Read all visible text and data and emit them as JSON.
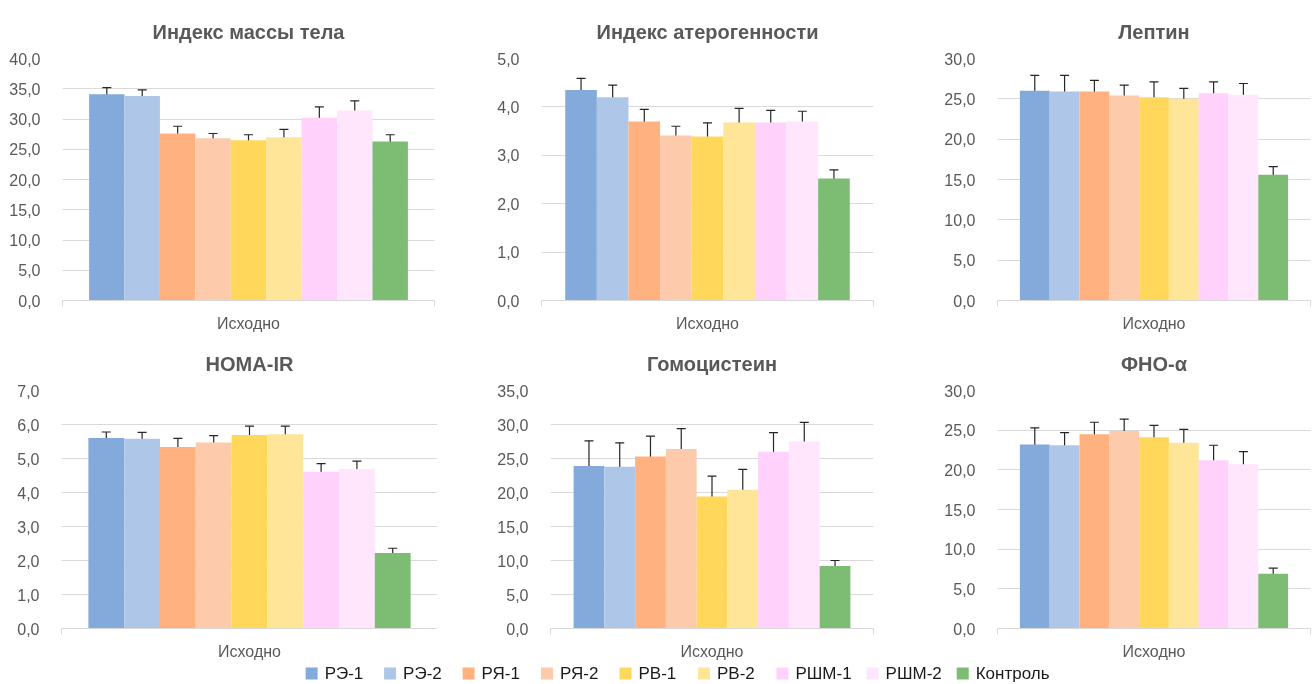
{
  "chart_data": [
    {
      "type": "bar",
      "title": "Индекс массы тела",
      "categories": [
        "Исходно"
      ],
      "ylim": [
        0,
        40
      ],
      "yticks": [
        {
          "value": 0,
          "label": "0,0"
        },
        {
          "value": 5,
          "label": "5,0"
        },
        {
          "value": 10,
          "label": "10,0"
        },
        {
          "value": 15,
          "label": "15,0"
        },
        {
          "value": 20,
          "label": "20,0"
        },
        {
          "value": 25,
          "label": "25,0"
        },
        {
          "value": 30,
          "label": "30,0"
        },
        {
          "value": 35,
          "label": "35,0"
        },
        {
          "value": 40,
          "label": "40,0"
        }
      ],
      "grid": "y",
      "series": [
        {
          "color": "#84aadb",
          "values": [
            34.1
          ],
          "errors": [
            1.1
          ]
        },
        {
          "color": "#aec7e8",
          "values": [
            33.8
          ],
          "errors": [
            1.0
          ]
        },
        {
          "color": "#ffb280",
          "values": [
            27.6
          ],
          "errors": [
            1.2
          ]
        },
        {
          "color": "#fdcaab",
          "values": [
            26.8
          ],
          "errors": [
            0.8
          ]
        },
        {
          "color": "#ffd85b",
          "values": [
            26.5
          ],
          "errors": [
            0.9
          ]
        },
        {
          "color": "#ffe597",
          "values": [
            27.0
          ],
          "errors": [
            1.3
          ]
        },
        {
          "color": "#ffd1fb",
          "values": [
            30.2
          ],
          "errors": [
            1.8
          ]
        },
        {
          "color": "#ffe6fc",
          "values": [
            31.4
          ],
          "errors": [
            1.6
          ]
        },
        {
          "color": "#7dbd73",
          "values": [
            26.3
          ],
          "errors": [
            1.1
          ]
        }
      ]
    },
    {
      "type": "bar",
      "title": "Индекс атерогенности",
      "categories": [
        "Исходно"
      ],
      "ylim": [
        0,
        5
      ],
      "yticks": [
        {
          "value": 0,
          "label": "0,0"
        },
        {
          "value": 1,
          "label": "1,0"
        },
        {
          "value": 2,
          "label": "2,0"
        },
        {
          "value": 3,
          "label": "3,0"
        },
        {
          "value": 4,
          "label": "4,0"
        },
        {
          "value": 5,
          "label": "5,0"
        }
      ],
      "grid": "y",
      "series": [
        {
          "color": "#84aadb",
          "values": [
            4.35
          ],
          "errors": [
            0.24
          ]
        },
        {
          "color": "#aec7e8",
          "values": [
            4.2
          ],
          "errors": [
            0.25
          ]
        },
        {
          "color": "#ffb280",
          "values": [
            3.7
          ],
          "errors": [
            0.25
          ]
        },
        {
          "color": "#fdcaab",
          "values": [
            3.41
          ],
          "errors": [
            0.19
          ]
        },
        {
          "color": "#ffd85b",
          "values": [
            3.39
          ],
          "errors": [
            0.28
          ]
        },
        {
          "color": "#ffe597",
          "values": [
            3.68
          ],
          "errors": [
            0.29
          ]
        },
        {
          "color": "#ffd1fb",
          "values": [
            3.68
          ],
          "errors": [
            0.25
          ]
        },
        {
          "color": "#ffe6fc",
          "values": [
            3.7
          ],
          "errors": [
            0.21
          ]
        },
        {
          "color": "#7dbd73",
          "values": [
            2.52
          ],
          "errors": [
            0.18
          ]
        }
      ]
    },
    {
      "type": "bar",
      "title": "Лептин",
      "categories": [
        "Исходно"
      ],
      "ylim": [
        0,
        30
      ],
      "yticks": [
        {
          "value": 0,
          "label": "0,0"
        },
        {
          "value": 5,
          "label": "5,0"
        },
        {
          "value": 10,
          "label": "10,0"
        },
        {
          "value": 15,
          "label": "15,0"
        },
        {
          "value": 20,
          "label": "20,0"
        },
        {
          "value": 25,
          "label": "25,0"
        },
        {
          "value": 30,
          "label": "30,0"
        }
      ],
      "grid": "y",
      "series": [
        {
          "color": "#84aadb",
          "values": [
            26.0
          ],
          "errors": [
            1.9
          ]
        },
        {
          "color": "#aec7e8",
          "values": [
            25.9
          ],
          "errors": [
            2.0
          ]
        },
        {
          "color": "#ffb280",
          "values": [
            25.9
          ],
          "errors": [
            1.4
          ]
        },
        {
          "color": "#fdcaab",
          "values": [
            25.4
          ],
          "errors": [
            1.3
          ]
        },
        {
          "color": "#ffd85b",
          "values": [
            25.2
          ],
          "errors": [
            1.9
          ]
        },
        {
          "color": "#ffe597",
          "values": [
            25.0
          ],
          "errors": [
            1.3
          ]
        },
        {
          "color": "#ffd1fb",
          "values": [
            25.7
          ],
          "errors": [
            1.4
          ]
        },
        {
          "color": "#ffe6fc",
          "values": [
            25.5
          ],
          "errors": [
            1.4
          ]
        },
        {
          "color": "#7dbd73",
          "values": [
            15.6
          ],
          "errors": [
            1.0
          ]
        }
      ]
    },
    {
      "type": "bar",
      "title": "HOMA-IR",
      "categories": [
        "Исходно"
      ],
      "ylim": [
        0,
        7
      ],
      "yticks": [
        {
          "value": 0,
          "label": "0,0"
        },
        {
          "value": 1,
          "label": "1,0"
        },
        {
          "value": 2,
          "label": "2,0"
        },
        {
          "value": 3,
          "label": "3,0"
        },
        {
          "value": 4,
          "label": "4,0"
        },
        {
          "value": 5,
          "label": "5,0"
        },
        {
          "value": 6,
          "label": "6,0"
        },
        {
          "value": 7,
          "label": "7,0"
        }
      ],
      "grid": "y",
      "series": [
        {
          "color": "#84aadb",
          "values": [
            5.6
          ],
          "errors": [
            0.18
          ]
        },
        {
          "color": "#aec7e8",
          "values": [
            5.58
          ],
          "errors": [
            0.19
          ]
        },
        {
          "color": "#ffb280",
          "values": [
            5.34
          ],
          "errors": [
            0.25
          ]
        },
        {
          "color": "#fdcaab",
          "values": [
            5.47
          ],
          "errors": [
            0.2
          ]
        },
        {
          "color": "#ffd85b",
          "values": [
            5.69
          ],
          "errors": [
            0.26
          ]
        },
        {
          "color": "#ffe597",
          "values": [
            5.71
          ],
          "errors": [
            0.24
          ]
        },
        {
          "color": "#ffd1fb",
          "values": [
            4.61
          ],
          "errors": [
            0.24
          ]
        },
        {
          "color": "#ffe6fc",
          "values": [
            4.69
          ],
          "errors": [
            0.23
          ]
        },
        {
          "color": "#7dbd73",
          "values": [
            2.22
          ],
          "errors": [
            0.14
          ]
        }
      ]
    },
    {
      "type": "bar",
      "title": "Гомоцистеин",
      "categories": [
        "Исходно"
      ],
      "ylim": [
        0,
        35
      ],
      "yticks": [
        {
          "value": 0,
          "label": "0,0"
        },
        {
          "value": 5,
          "label": "5,0"
        },
        {
          "value": 10,
          "label": "10,0"
        },
        {
          "value": 15,
          "label": "15,0"
        },
        {
          "value": 20,
          "label": "20,0"
        },
        {
          "value": 25,
          "label": "25,0"
        },
        {
          "value": 30,
          "label": "30,0"
        },
        {
          "value": 35,
          "label": "35,0"
        }
      ],
      "grid": "y",
      "legend": "bottom",
      "series": [
        {
          "name": "РЭ-1",
          "color": "#84aadb",
          "values": [
            23.9
          ],
          "errors": [
            3.7
          ]
        },
        {
          "name": "РЭ-2",
          "color": "#aec7e8",
          "values": [
            23.8
          ],
          "errors": [
            3.5
          ]
        },
        {
          "name": "РЯ-1",
          "color": "#ffb280",
          "values": [
            25.3
          ],
          "errors": [
            3.0
          ]
        },
        {
          "name": "РЯ-2",
          "color": "#fdcaab",
          "values": [
            26.4
          ],
          "errors": [
            3.0
          ]
        },
        {
          "name": "РВ-1",
          "color": "#ffd85b",
          "values": [
            19.4
          ],
          "errors": [
            3.0
          ]
        },
        {
          "name": "РВ-2",
          "color": "#ffe597",
          "values": [
            20.4
          ],
          "errors": [
            3.0
          ]
        },
        {
          "name": "РШМ-1",
          "color": "#ffd1fb",
          "values": [
            26.0
          ],
          "errors": [
            2.8
          ]
        },
        {
          "name": "РШМ-2",
          "color": "#ffe6fc",
          "values": [
            27.5
          ],
          "errors": [
            2.8
          ]
        },
        {
          "name": "Контроль",
          "color": "#7dbd73",
          "values": [
            9.2
          ],
          "errors": [
            0.8
          ]
        }
      ]
    },
    {
      "type": "bar",
      "title": "ФНО-α",
      "categories": [
        "Исходно"
      ],
      "ylim": [
        0,
        30
      ],
      "yticks": [
        {
          "value": 0,
          "label": "0,0"
        },
        {
          "value": 5,
          "label": "5,0"
        },
        {
          "value": 10,
          "label": "10,0"
        },
        {
          "value": 15,
          "label": "15,0"
        },
        {
          "value": 20,
          "label": "20,0"
        },
        {
          "value": 25,
          "label": "25,0"
        },
        {
          "value": 30,
          "label": "30,0"
        }
      ],
      "grid": "y",
      "series": [
        {
          "color": "#84aadb",
          "values": [
            23.2
          ],
          "errors": [
            2.1
          ]
        },
        {
          "color": "#aec7e8",
          "values": [
            23.1
          ],
          "errors": [
            1.6
          ]
        },
        {
          "color": "#ffb280",
          "values": [
            24.5
          ],
          "errors": [
            1.5
          ]
        },
        {
          "color": "#fdcaab",
          "values": [
            24.9
          ],
          "errors": [
            1.5
          ]
        },
        {
          "color": "#ffd85b",
          "values": [
            24.1
          ],
          "errors": [
            1.5
          ]
        },
        {
          "color": "#ffe597",
          "values": [
            23.4
          ],
          "errors": [
            1.7
          ]
        },
        {
          "color": "#ffd1fb",
          "values": [
            21.2
          ],
          "errors": [
            1.9
          ]
        },
        {
          "color": "#ffe6fc",
          "values": [
            20.7
          ],
          "errors": [
            1.6
          ]
        },
        {
          "color": "#7dbd73",
          "values": [
            6.9
          ],
          "errors": [
            0.7
          ]
        }
      ]
    }
  ]
}
